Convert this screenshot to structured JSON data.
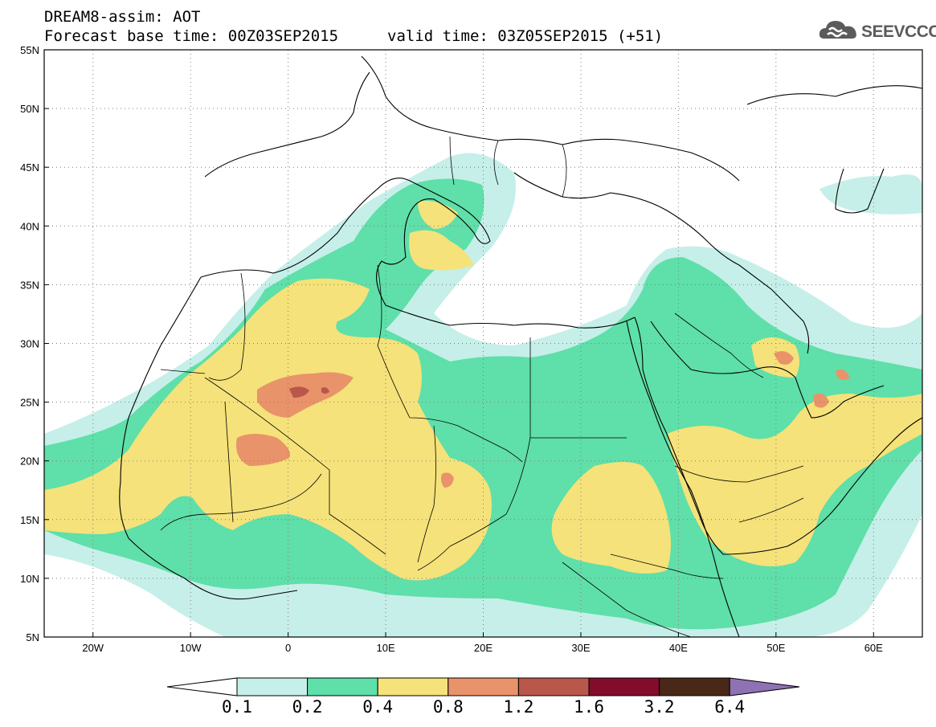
{
  "header": {
    "title_line1": "DREAM8-assim: AOT",
    "title_line2": "Forecast base time: 00Z03SEP2015",
    "valid_time": "valid time: 03Z05SEP2015 (+51)",
    "logo_text": "SEEVCCC",
    "logo_icon": "cloud-logo-icon"
  },
  "map": {
    "lon_range": [
      -25,
      65
    ],
    "lat_range": [
      5,
      55
    ],
    "lat_ticks": [
      "55N",
      "50N",
      "45N",
      "40N",
      "35N",
      "30N",
      "25N",
      "20N",
      "15N",
      "10N",
      "5N"
    ],
    "lat_values": [
      55,
      50,
      45,
      40,
      35,
      30,
      25,
      20,
      15,
      10,
      5
    ],
    "lon_ticks": [
      "20W",
      "10W",
      "0",
      "10E",
      "20E",
      "30E",
      "40E",
      "50E",
      "60E"
    ],
    "lon_values": [
      -20,
      -10,
      0,
      10,
      20,
      30,
      40,
      50,
      60
    ],
    "gridlines": "dotted"
  },
  "colorbar": {
    "thresholds": [
      "0.1",
      "0.2",
      "0.4",
      "0.8",
      "1.2",
      "1.6",
      "3.2",
      "6.4"
    ],
    "colors": [
      "#ffffff",
      "#c6efe9",
      "#5fdfa9",
      "#f5e27a",
      "#e9936a",
      "#b9574a",
      "#820c2c",
      "#4a2818",
      "#8f72b3"
    ]
  }
}
